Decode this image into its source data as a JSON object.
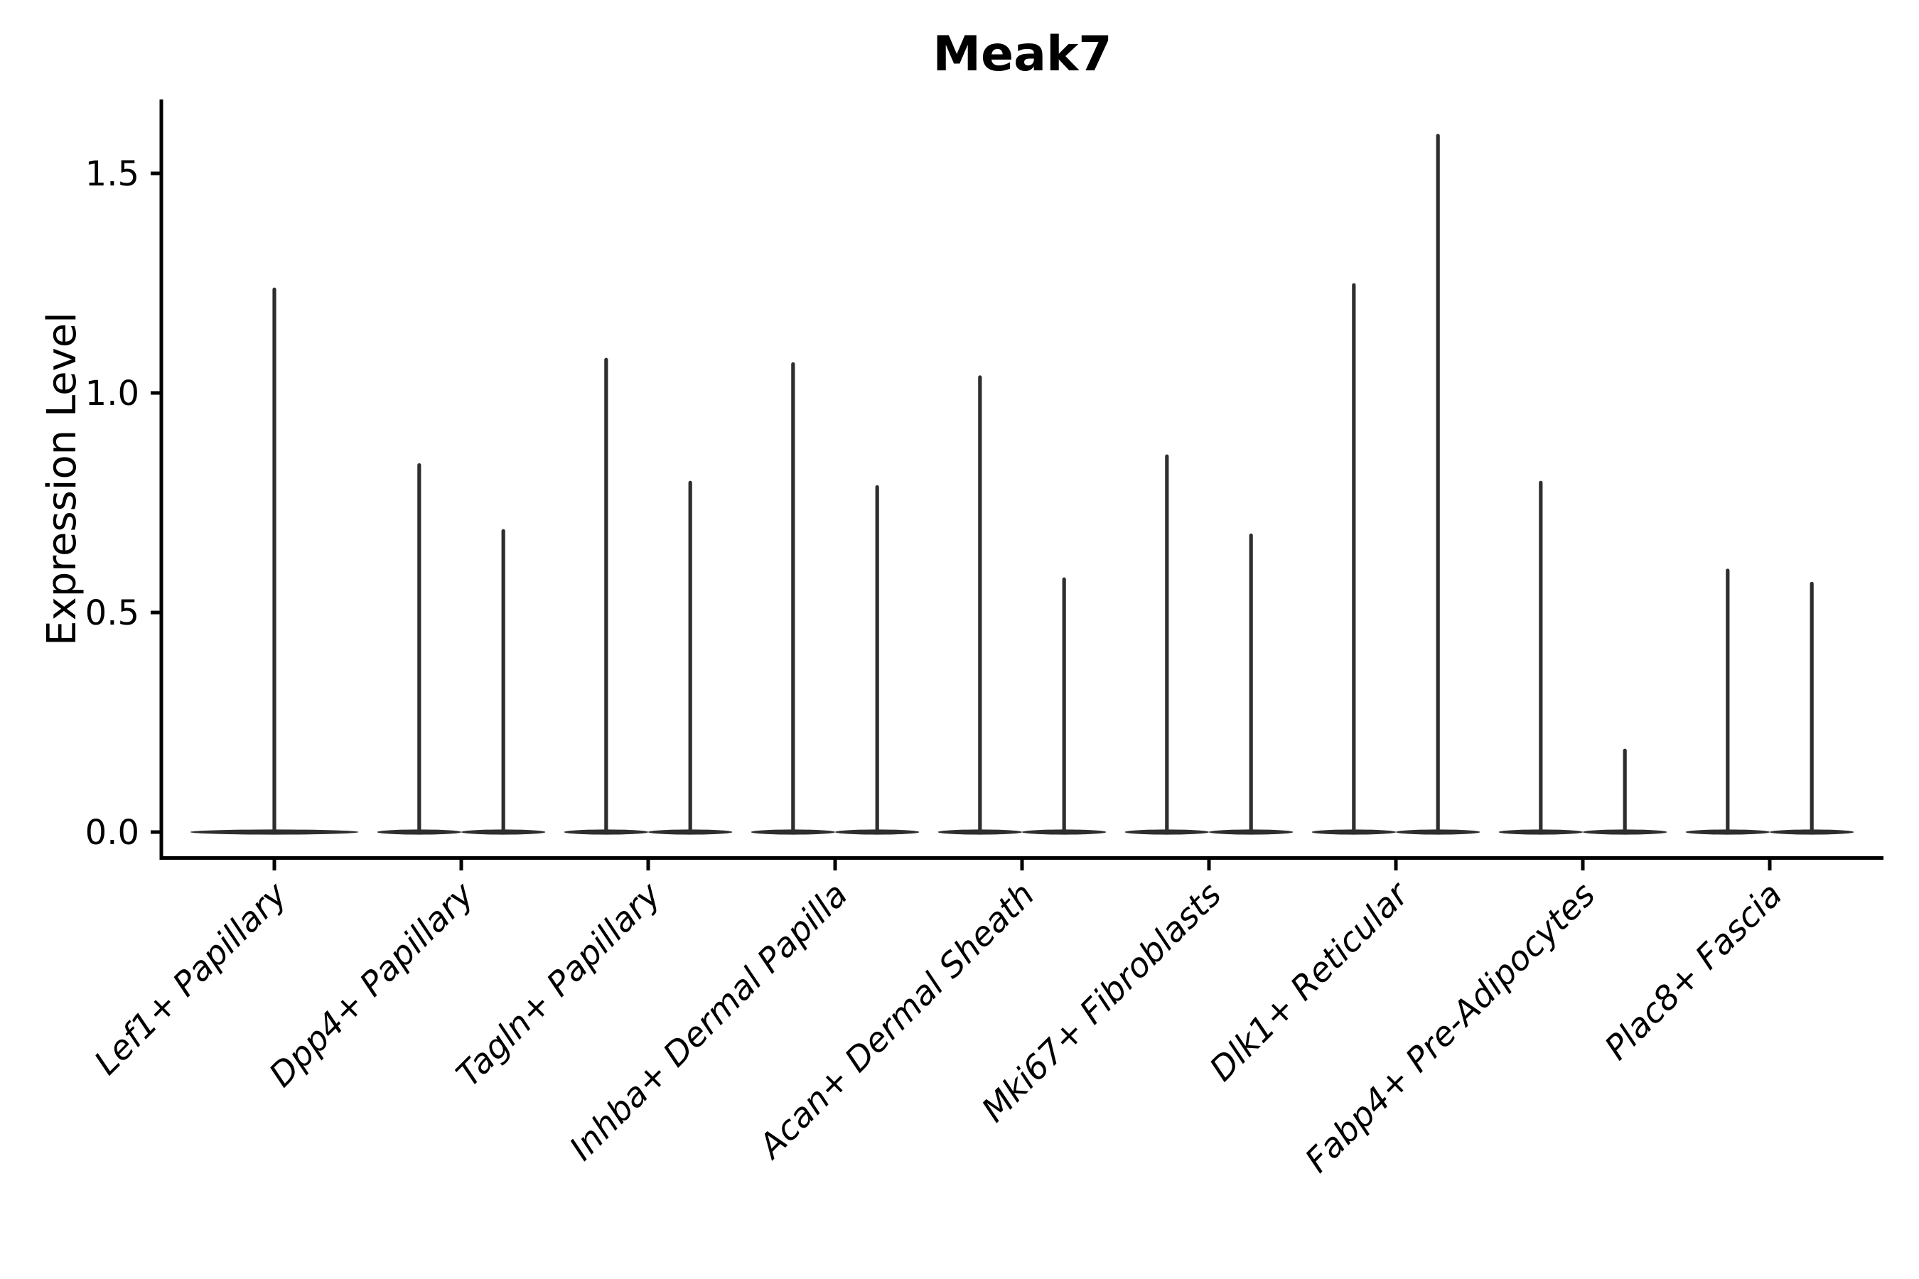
{
  "figure": {
    "title": "Meak7",
    "y_axis_label": "Expression Level"
  },
  "chart_data": {
    "type": "violin",
    "title": "Meak7",
    "xlabel": "",
    "ylabel": "Expression Level",
    "ylim": [
      0,
      1.67
    ],
    "yticks": [
      0.0,
      0.5,
      1.0,
      1.5
    ],
    "ytick_labels": [
      "0.0",
      "0.5",
      "1.0",
      "1.5"
    ],
    "grid": false,
    "legend": "none",
    "categories": [
      "Lef1+ Papillary",
      "Dpp4+ Papillary",
      "Tagln+ Papillary",
      "Inhba+ Dermal Papilla",
      "Acan+ Dermal Sheath",
      "Mki67+ Fibroblasts",
      "Dlk1+ Reticular",
      "Fabp4+ Pre-Adipocytes",
      "Plac8+ Fascia"
    ],
    "violins": [
      {
        "category": "Lef1+ Papillary",
        "parts": [
          {
            "position": "center",
            "max": 1.24
          }
        ]
      },
      {
        "category": "Dpp4+ Papillary",
        "parts": [
          {
            "position": "left",
            "max": 0.84
          },
          {
            "position": "right",
            "max": 0.69
          }
        ]
      },
      {
        "category": "Tagln+ Papillary",
        "parts": [
          {
            "position": "left",
            "max": 1.08
          },
          {
            "position": "right",
            "max": 0.8
          }
        ]
      },
      {
        "category": "Inhba+ Dermal Papilla",
        "parts": [
          {
            "position": "left",
            "max": 1.07
          },
          {
            "position": "right",
            "max": 0.79
          }
        ]
      },
      {
        "category": "Acan+ Dermal Sheath",
        "parts": [
          {
            "position": "left",
            "max": 1.04
          },
          {
            "position": "right",
            "max": 0.58
          }
        ]
      },
      {
        "category": "Mki67+ Fibroblasts",
        "parts": [
          {
            "position": "left",
            "max": 0.86
          },
          {
            "position": "right",
            "max": 0.68
          }
        ]
      },
      {
        "category": "Dlk1+ Reticular",
        "parts": [
          {
            "position": "left",
            "max": 1.25
          },
          {
            "position": "right",
            "max": 1.59
          }
        ]
      },
      {
        "category": "Fabp4+ Pre-Adipocytes",
        "parts": [
          {
            "position": "left",
            "max": 0.8
          },
          {
            "position": "right",
            "max": 0.19
          }
        ]
      },
      {
        "category": "Plac8+ Fascia",
        "parts": [
          {
            "position": "left",
            "max": 0.6
          },
          {
            "position": "right",
            "max": 0.57
          }
        ]
      }
    ],
    "style": {
      "violin_color": "#2e2e2e",
      "axis_color": "#000000",
      "text_color": "#000000",
      "background": "#ffffff",
      "title_bold": true,
      "xtick_labels_italic": true,
      "xtick_label_rotation_deg": 45
    }
  }
}
